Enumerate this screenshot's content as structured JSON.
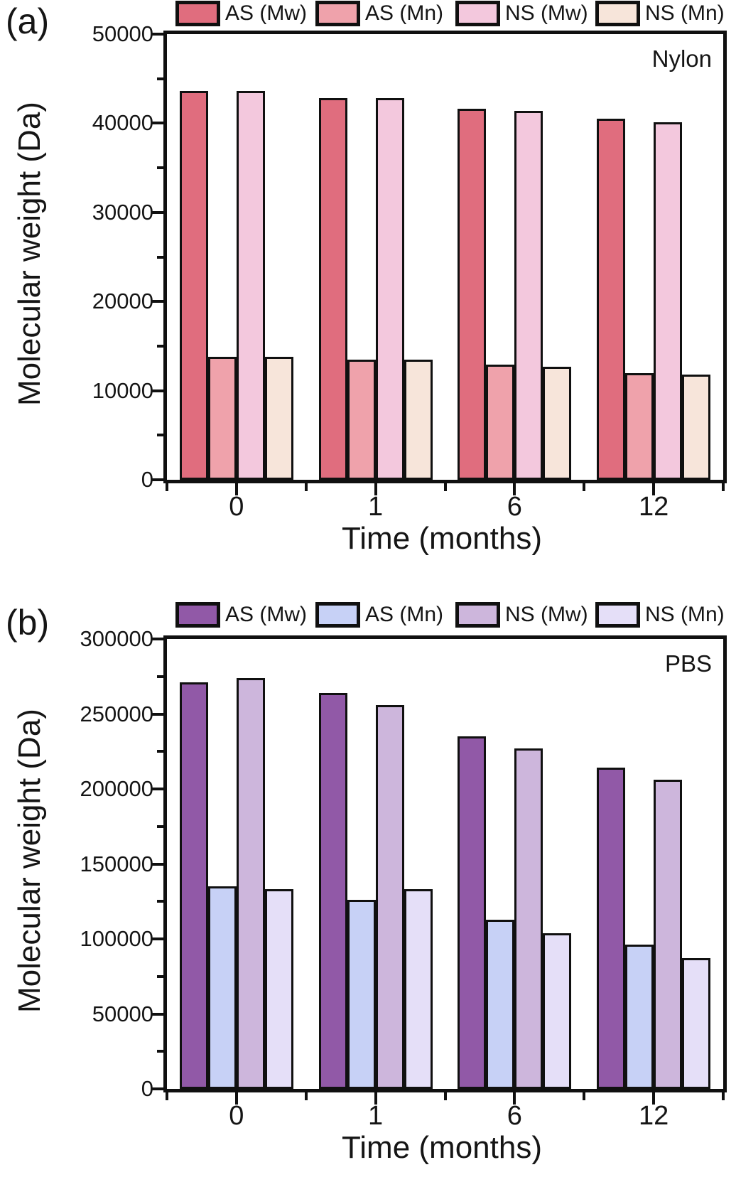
{
  "chart_data": [
    {
      "type": "bar",
      "panel_label": "(a)",
      "annotation": "Nylon",
      "xlabel": "Time (months)",
      "ylabel": "Molecular weight (Da)",
      "categories": [
        "0",
        "1",
        "6",
        "12"
      ],
      "series": [
        {
          "name": "AS (Mw)",
          "color": "#e06d7e",
          "values": [
            43600,
            42800,
            41600,
            40500
          ]
        },
        {
          "name": "AS (Mn)",
          "color": "#efa2ab",
          "values": [
            13800,
            13500,
            12900,
            12000
          ]
        },
        {
          "name": "NS (Mw)",
          "color": "#f3c8dd",
          "values": [
            43600,
            42800,
            41400,
            40100
          ]
        },
        {
          "name": "NS (Mn)",
          "color": "#f7e5da",
          "values": [
            13800,
            13500,
            12700,
            11800
          ]
        }
      ],
      "ylim": [
        0,
        50000
      ],
      "ytick_step": 10000,
      "yminor_step": 5000,
      "legend_position": "top",
      "grid": false
    },
    {
      "type": "bar",
      "panel_label": "(b)",
      "annotation": "PBS",
      "xlabel": "Time (months)",
      "ylabel": "Molecular weight (Da)",
      "categories": [
        "0",
        "1",
        "6",
        "12"
      ],
      "series": [
        {
          "name": "AS (Mw)",
          "color": "#9159a7",
          "values": [
            271000,
            264000,
            235000,
            214000
          ]
        },
        {
          "name": "AS (Mn)",
          "color": "#c7d1f6",
          "values": [
            135000,
            126000,
            113000,
            96000
          ]
        },
        {
          "name": "NS (Mw)",
          "color": "#cdb6dc",
          "values": [
            274000,
            256000,
            227000,
            206000
          ]
        },
        {
          "name": "NS (Mn)",
          "color": "#e5dff8",
          "values": [
            133000,
            133000,
            104000,
            87000
          ]
        }
      ],
      "ylim": [
        0,
        300000
      ],
      "ytick_step": 50000,
      "yminor_step": 25000,
      "legend_position": "top",
      "grid": false
    }
  ]
}
